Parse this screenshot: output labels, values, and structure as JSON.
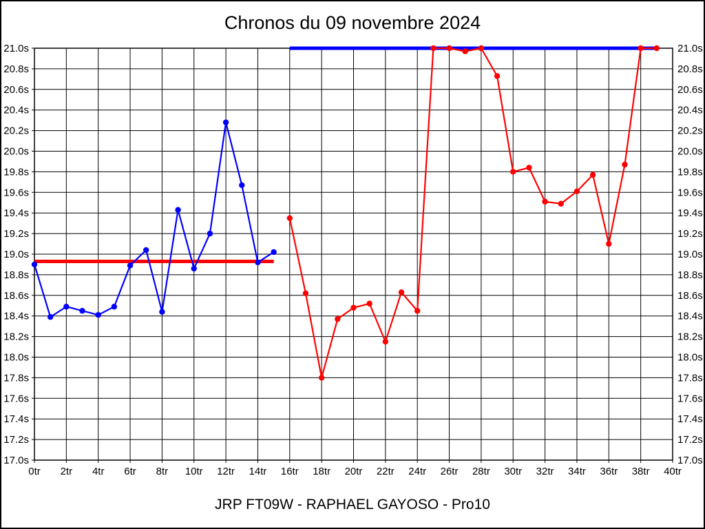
{
  "page": {
    "title": "Chronos du 09 novembre 2024",
    "footer": "JRP FT09W - RAPHAEL GAYOSO - Pro10"
  },
  "colors": {
    "series_blue": "#0000ff",
    "series_red": "#ff0000",
    "grid": "#000000",
    "background": "#ffffff"
  },
  "chart_data": {
    "type": "line",
    "title": "Chronos du 09 novembre 2024",
    "xlabel": "",
    "ylabel": "",
    "x_unit": "tr",
    "y_unit": "s",
    "xlim": [
      0,
      40
    ],
    "ylim": [
      17.0,
      21.0
    ],
    "x_tick_step": 2,
    "y_tick_step": 0.2,
    "grid": true,
    "legend": "none",
    "x_tick_labels": [
      "0tr",
      "2tr",
      "4tr",
      "6tr",
      "8tr",
      "10tr",
      "12tr",
      "14tr",
      "16tr",
      "18tr",
      "20tr",
      "22tr",
      "24tr",
      "26tr",
      "28tr",
      "30tr",
      "32tr",
      "34tr",
      "36tr",
      "38tr",
      "40tr"
    ],
    "y_tick_labels": [
      "21.0s",
      "20.8s",
      "20.6s",
      "20.4s",
      "20.2s",
      "20.0s",
      "19.8s",
      "19.6s",
      "19.4s",
      "19.2s",
      "19.0s",
      "18.8s",
      "18.6s",
      "18.4s",
      "18.2s",
      "18.0s",
      "17.8s",
      "17.6s",
      "17.4s",
      "17.2s",
      "17.0s"
    ],
    "series": [
      {
        "name": "manche-1-bleue",
        "color": "#0000ff",
        "x": [
          0,
          1,
          2,
          3,
          4,
          5,
          6,
          7,
          8,
          9,
          10,
          11,
          12,
          13,
          14,
          15
        ],
        "values": [
          18.9,
          18.39,
          18.49,
          18.45,
          18.41,
          18.49,
          18.89,
          19.04,
          18.44,
          19.43,
          18.86,
          19.2,
          20.28,
          19.67,
          18.92,
          19.02
        ]
      },
      {
        "name": "manche-2-rouge",
        "color": "#ff0000",
        "x": [
          16,
          17,
          18,
          19,
          20,
          21,
          22,
          23,
          24,
          25,
          26,
          27,
          28,
          29,
          30,
          31,
          32,
          33,
          34,
          35,
          36,
          37,
          38,
          39
        ],
        "values": [
          19.35,
          18.62,
          17.8,
          18.37,
          18.48,
          18.52,
          18.15,
          18.63,
          18.45,
          21.0,
          21.0,
          20.97,
          21.0,
          20.73,
          19.8,
          19.84,
          19.51,
          19.49,
          19.61,
          19.77,
          19.1,
          19.87,
          21.0,
          21.0
        ]
      }
    ],
    "reference_lines": [
      {
        "name": "moyenne-manche-1",
        "color": "#ff0000",
        "value": 18.93,
        "x_start": 0,
        "x_end": 15
      },
      {
        "name": "moyenne-manche-2",
        "color": "#0000ff",
        "value": 21.0,
        "x_start": 16,
        "x_end": 39
      }
    ]
  }
}
